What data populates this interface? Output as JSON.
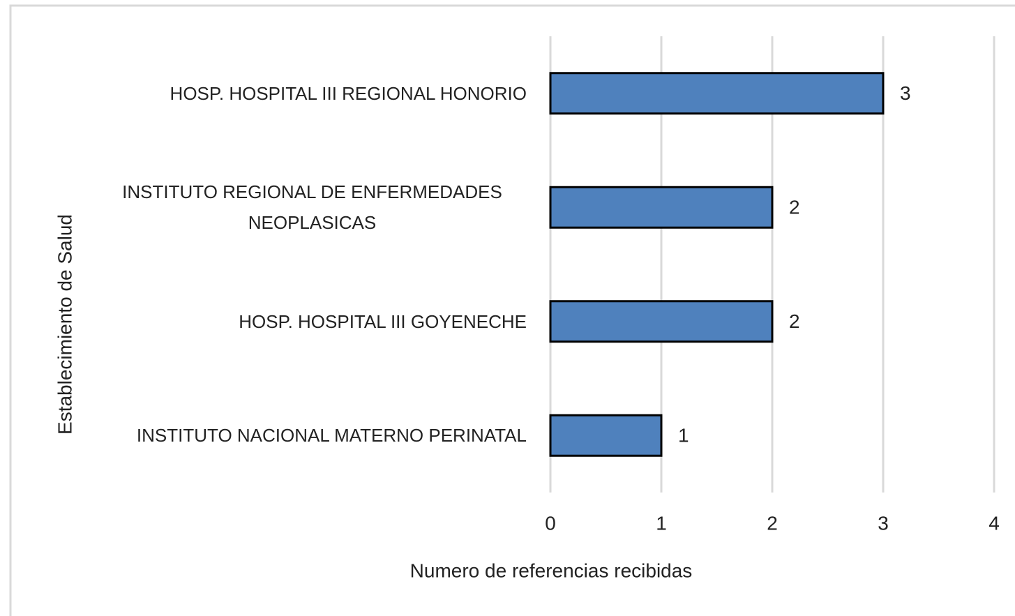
{
  "chart_data": {
    "type": "barh",
    "categories": [
      "HOSP. HOSPITAL III REGIONAL HONORIO",
      "INSTITUTO REGIONAL DE ENFERMEDADES NEOPLASICAS",
      "HOSP. HOSPITAL III GOYENECHE",
      "INSTITUTO NACIONAL MATERNO PERINATAL"
    ],
    "values": [
      3,
      2,
      2,
      1
    ],
    "color": "#4f81bd",
    "xlim": [
      0,
      4
    ],
    "xticks": [
      0,
      1,
      2,
      3,
      4
    ],
    "grid": true,
    "xlabel": "Numero de referencias recibidas",
    "ylabel": "Establecimiento de Salud"
  }
}
